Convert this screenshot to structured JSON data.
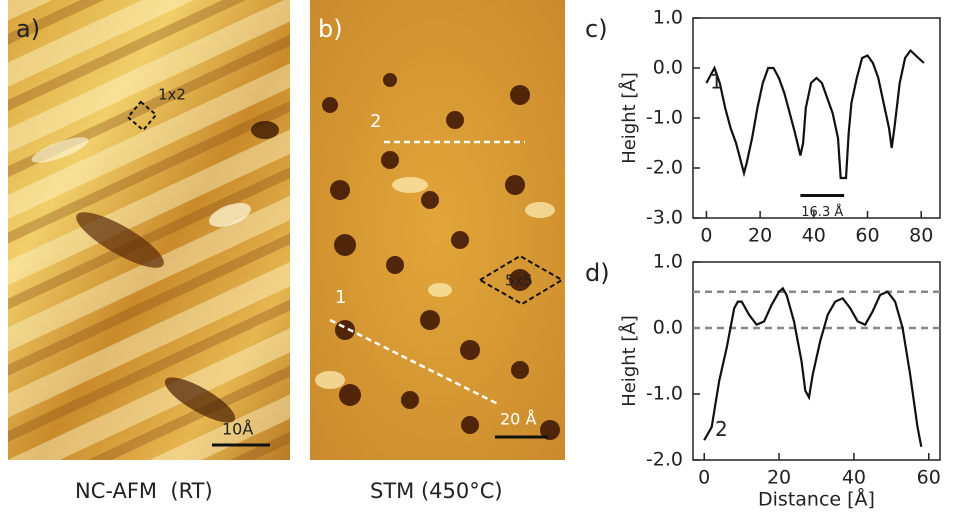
{
  "panels": [
    {
      "label": "a)",
      "caption": "NC-AFM  (RT)",
      "annotations": [
        "1x2"
      ],
      "scale_bar": "10Å"
    },
    {
      "label": "b)",
      "caption": "STM (450°C)",
      "annotations": [
        "2",
        "1",
        "5x5"
      ],
      "scale_bar": "20 Å"
    }
  ],
  "chart_data": [
    {
      "type": "line",
      "panel_label": "c)",
      "y_label": "Height [Å]",
      "annotation": "1",
      "scale_bar": {
        "label": "16.3 Å",
        "x": [
          35,
          51.3
        ]
      },
      "color": "#111",
      "x": [
        0,
        2,
        3,
        5,
        7,
        9,
        11,
        13,
        14,
        15,
        17,
        19,
        21,
        23,
        25,
        27,
        29,
        31,
        33,
        35,
        36,
        37,
        39,
        41,
        43,
        45,
        47,
        49,
        50,
        52,
        53,
        54,
        56,
        58,
        60,
        62,
        64,
        66,
        68,
        69,
        70,
        72,
        74,
        76,
        78,
        80,
        81
      ],
      "values": [
        -0.3,
        -0.1,
        0.0,
        -0.3,
        -0.8,
        -1.2,
        -1.5,
        -1.9,
        -2.1,
        -1.9,
        -1.4,
        -0.8,
        -0.3,
        0.0,
        0.0,
        -0.2,
        -0.5,
        -0.9,
        -1.3,
        -1.75,
        -1.5,
        -0.8,
        -0.3,
        -0.2,
        -0.3,
        -0.6,
        -0.9,
        -1.4,
        -2.2,
        -2.2,
        -1.3,
        -0.7,
        -0.2,
        0.2,
        0.25,
        0.1,
        -0.2,
        -0.7,
        -1.2,
        -1.6,
        -1.2,
        -0.3,
        0.2,
        0.35,
        0.25,
        0.15,
        0.1
      ],
      "xlim": [
        -5,
        87
      ],
      "xticks": [
        0,
        20,
        40,
        60,
        80
      ],
      "ylim": [
        -3,
        1
      ],
      "yticks": [
        {
          "value": -3,
          "label": "-3.0"
        },
        {
          "value": -2,
          "label": "-2.0"
        },
        {
          "value": -1,
          "label": "-1.0"
        },
        {
          "value": 0,
          "label": "0.0"
        },
        {
          "value": 1,
          "label": "1.0"
        }
      ]
    },
    {
      "type": "line",
      "panel_label": "d)",
      "y_label": "Height [Å]",
      "x_label": "Distance [Å]",
      "annotation": "2",
      "color": "#111",
      "reference_lines": [
        0.55,
        0.0
      ],
      "x": [
        0,
        2,
        4,
        6,
        8,
        9,
        10,
        12,
        14,
        16,
        18,
        20,
        21,
        22,
        24,
        26,
        27,
        28,
        29,
        31,
        33,
        35,
        37,
        39,
        41,
        43,
        45,
        47,
        49,
        51,
        53,
        55,
        57,
        58
      ],
      "values": [
        -1.7,
        -1.5,
        -0.8,
        -0.3,
        0.3,
        0.4,
        0.4,
        0.2,
        0.05,
        0.1,
        0.35,
        0.55,
        0.6,
        0.5,
        0.1,
        -0.5,
        -0.95,
        -1.05,
        -0.7,
        -0.2,
        0.2,
        0.4,
        0.45,
        0.3,
        0.1,
        0.05,
        0.25,
        0.5,
        0.55,
        0.4,
        0.0,
        -0.7,
        -1.5,
        -1.8
      ],
      "xlim": [
        -3,
        63
      ],
      "xticks": [
        0,
        20,
        40,
        60
      ],
      "ylim": [
        -2,
        1
      ],
      "yticks": [
        {
          "value": -2,
          "label": "-2.0"
        },
        {
          "value": -1,
          "label": "-1.0"
        },
        {
          "value": 0,
          "label": "0.0"
        },
        {
          "value": 1,
          "label": "1.0"
        }
      ]
    }
  ]
}
